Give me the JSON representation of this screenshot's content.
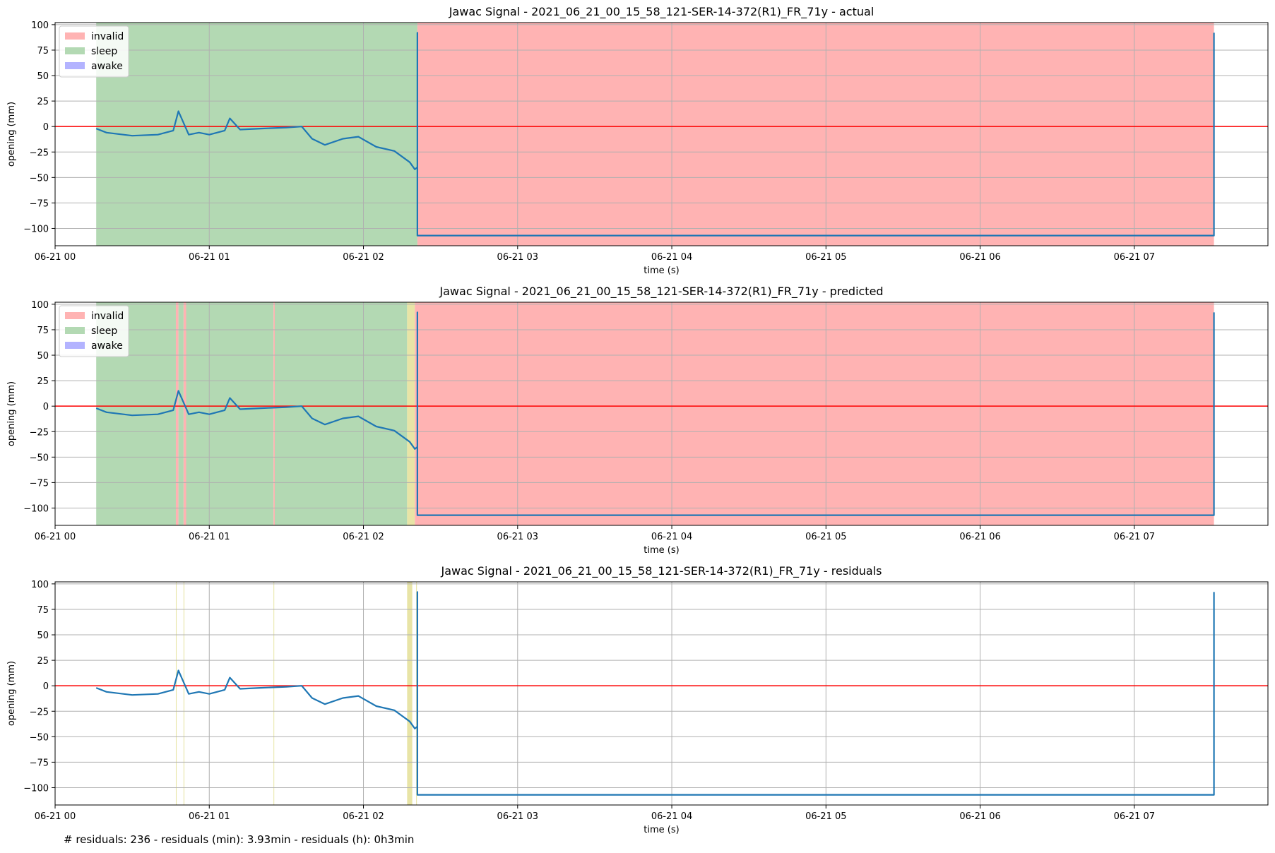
{
  "figure": {
    "footer_text": "# residuals: 236 - residuals (min): 3.93min - residuals (h): 0h3min"
  },
  "colors": {
    "signal": "#1f77b4",
    "zero_line": "#ff0000",
    "invalid": "#ffb3b3",
    "sleep": "#b3d9b3",
    "awake": "#b3b3ff",
    "residual_span": "#e8e4a6",
    "grid": "#b0b0b0"
  },
  "chart_data": [
    {
      "type": "line",
      "title": "Jawac Signal - 2021_06_21_00_15_58_121-SER-14-372(R1)_FR_71y - actual",
      "xlabel": "time (s)",
      "ylabel": "opening (mm)",
      "x_ticks": [
        "06-21 00",
        "06-21 01",
        "06-21 02",
        "06-21 03",
        "06-21 04",
        "06-21 05",
        "06-21 06",
        "06-21 07"
      ],
      "y_ticks": [
        100,
        75,
        50,
        25,
        0,
        -25,
        -50,
        -75,
        -100
      ],
      "xlim": [
        "2021-06-21 00:00",
        "2021-06-21 07:52"
      ],
      "ylim": [
        -117,
        102
      ],
      "grid": true,
      "legend": {
        "position": "top-left",
        "entries": [
          "invalid",
          "sleep",
          "awake"
        ]
      },
      "spans": [
        {
          "label": "sleep",
          "start": "2021-06-21 00:16",
          "end": "2021-06-21 02:21"
        },
        {
          "label": "invalid",
          "start": "2021-06-21 02:21",
          "end": "2021-06-21 07:31"
        }
      ],
      "hline": 0,
      "series": [
        {
          "x": [
            "2021-06-21 00:16",
            "2021-06-21 00:20",
            "2021-06-21 00:30",
            "2021-06-21 00:40",
            "2021-06-21 00:46",
            "2021-06-21 00:48",
            "2021-06-21 00:52",
            "2021-06-21 00:56",
            "2021-06-21 01:00",
            "2021-06-21 01:06",
            "2021-06-21 01:08",
            "2021-06-21 01:12",
            "2021-06-21 01:20",
            "2021-06-21 01:30",
            "2021-06-21 01:36",
            "2021-06-21 01:40",
            "2021-06-21 01:45",
            "2021-06-21 01:52",
            "2021-06-21 01:58",
            "2021-06-21 02:05",
            "2021-06-21 02:12",
            "2021-06-21 02:18",
            "2021-06-21 02:20",
            "2021-06-21 02:21",
            "2021-06-21 02:21",
            "2021-06-21 02:21",
            "2021-06-21 07:31",
            "2021-06-21 07:31",
            "2021-06-21 07:31"
          ],
          "y": [
            -2,
            -6,
            -9,
            -8,
            -4,
            15,
            -8,
            -6,
            -8,
            -4,
            8,
            -3,
            -2,
            -1,
            0,
            -12,
            -18,
            -12,
            -10,
            -20,
            -24,
            -35,
            -42,
            -40,
            92,
            -107,
            -107,
            -95,
            92
          ]
        }
      ]
    },
    {
      "type": "line",
      "title": "Jawac Signal - 2021_06_21_00_15_58_121-SER-14-372(R1)_FR_71y - predicted",
      "xlabel": "time (s)",
      "ylabel": "opening (mm)",
      "x_ticks": [
        "06-21 00",
        "06-21 01",
        "06-21 02",
        "06-21 03",
        "06-21 04",
        "06-21 05",
        "06-21 06",
        "06-21 07"
      ],
      "y_ticks": [
        100,
        75,
        50,
        25,
        0,
        -25,
        -50,
        -75,
        -100
      ],
      "xlim": [
        "2021-06-21 00:00",
        "2021-06-21 07:52"
      ],
      "ylim": [
        -117,
        102
      ],
      "grid": true,
      "legend": {
        "position": "top-left",
        "entries": [
          "invalid",
          "sleep",
          "awake"
        ]
      },
      "spans": [
        {
          "label": "sleep",
          "start": "2021-06-21 00:16",
          "end": "2021-06-21 00:47"
        },
        {
          "label": "invalid",
          "start": "2021-06-21 00:47",
          "end": "2021-06-21 00:48"
        },
        {
          "label": "sleep",
          "start": "2021-06-21 00:48",
          "end": "2021-06-21 00:50"
        },
        {
          "label": "invalid",
          "start": "2021-06-21 00:50",
          "end": "2021-06-21 00:51"
        },
        {
          "label": "sleep",
          "start": "2021-06-21 00:51",
          "end": "2021-06-21 01:25"
        },
        {
          "label": "invalid",
          "start": "2021-06-21 01:25",
          "end": "2021-06-21 01:25.5"
        },
        {
          "label": "sleep",
          "start": "2021-06-21 01:25.5",
          "end": "2021-06-21 02:17"
        },
        {
          "label": "residual",
          "start": "2021-06-21 02:17",
          "end": "2021-06-21 02:20"
        },
        {
          "label": "invalid",
          "start": "2021-06-21 02:20",
          "end": "2021-06-21 07:31"
        }
      ],
      "hline": 0,
      "series": [
        {
          "x": [
            "2021-06-21 00:16",
            "2021-06-21 00:20",
            "2021-06-21 00:30",
            "2021-06-21 00:40",
            "2021-06-21 00:46",
            "2021-06-21 00:48",
            "2021-06-21 00:52",
            "2021-06-21 00:56",
            "2021-06-21 01:00",
            "2021-06-21 01:06",
            "2021-06-21 01:08",
            "2021-06-21 01:12",
            "2021-06-21 01:20",
            "2021-06-21 01:30",
            "2021-06-21 01:36",
            "2021-06-21 01:40",
            "2021-06-21 01:45",
            "2021-06-21 01:52",
            "2021-06-21 01:58",
            "2021-06-21 02:05",
            "2021-06-21 02:12",
            "2021-06-21 02:18",
            "2021-06-21 02:20",
            "2021-06-21 02:21",
            "2021-06-21 02:21",
            "2021-06-21 02:21",
            "2021-06-21 07:31",
            "2021-06-21 07:31",
            "2021-06-21 07:31"
          ],
          "y": [
            -2,
            -6,
            -9,
            -8,
            -4,
            15,
            -8,
            -6,
            -8,
            -4,
            8,
            -3,
            -2,
            -1,
            0,
            -12,
            -18,
            -12,
            -10,
            -20,
            -24,
            -35,
            -42,
            -40,
            92,
            -107,
            -107,
            -95,
            92
          ]
        }
      ]
    },
    {
      "type": "line",
      "title": "Jawac Signal - 2021_06_21_00_15_58_121-SER-14-372(R1)_FR_71y - residuals",
      "xlabel": "time (s)",
      "ylabel": "opening (mm)",
      "x_ticks": [
        "06-21 00",
        "06-21 01",
        "06-21 02",
        "06-21 03",
        "06-21 04",
        "06-21 05",
        "06-21 06",
        "06-21 07"
      ],
      "y_ticks": [
        100,
        75,
        50,
        25,
        0,
        -25,
        -50,
        -75,
        -100
      ],
      "xlim": [
        "2021-06-21 00:00",
        "2021-06-21 07:52"
      ],
      "ylim": [
        -117,
        102
      ],
      "grid": true,
      "spans": [
        {
          "label": "residual",
          "start": "2021-06-21 00:47",
          "end": "2021-06-21 00:47.3"
        },
        {
          "label": "residual",
          "start": "2021-06-21 00:50",
          "end": "2021-06-21 00:50.3"
        },
        {
          "label": "residual",
          "start": "2021-06-21 01:25",
          "end": "2021-06-21 01:25.2"
        },
        {
          "label": "residual",
          "start": "2021-06-21 02:17",
          "end": "2021-06-21 02:19"
        },
        {
          "label": "residual",
          "start": "2021-06-21 02:20.5",
          "end": "2021-06-21 02:20.8"
        }
      ],
      "hline": 0,
      "series": [
        {
          "x": [
            "2021-06-21 00:16",
            "2021-06-21 00:20",
            "2021-06-21 00:30",
            "2021-06-21 00:40",
            "2021-06-21 00:46",
            "2021-06-21 00:48",
            "2021-06-21 00:52",
            "2021-06-21 00:56",
            "2021-06-21 01:00",
            "2021-06-21 01:06",
            "2021-06-21 01:08",
            "2021-06-21 01:12",
            "2021-06-21 01:20",
            "2021-06-21 01:30",
            "2021-06-21 01:36",
            "2021-06-21 01:40",
            "2021-06-21 01:45",
            "2021-06-21 01:52",
            "2021-06-21 01:58",
            "2021-06-21 02:05",
            "2021-06-21 02:12",
            "2021-06-21 02:18",
            "2021-06-21 02:20",
            "2021-06-21 02:21",
            "2021-06-21 02:21",
            "2021-06-21 02:21",
            "2021-06-21 07:31",
            "2021-06-21 07:31",
            "2021-06-21 07:31"
          ],
          "y": [
            -2,
            -6,
            -9,
            -8,
            -4,
            15,
            -8,
            -6,
            -8,
            -4,
            8,
            -3,
            -2,
            -1,
            0,
            -12,
            -18,
            -12,
            -10,
            -20,
            -24,
            -35,
            -42,
            -40,
            92,
            -107,
            -107,
            -95,
            92
          ]
        }
      ]
    }
  ]
}
